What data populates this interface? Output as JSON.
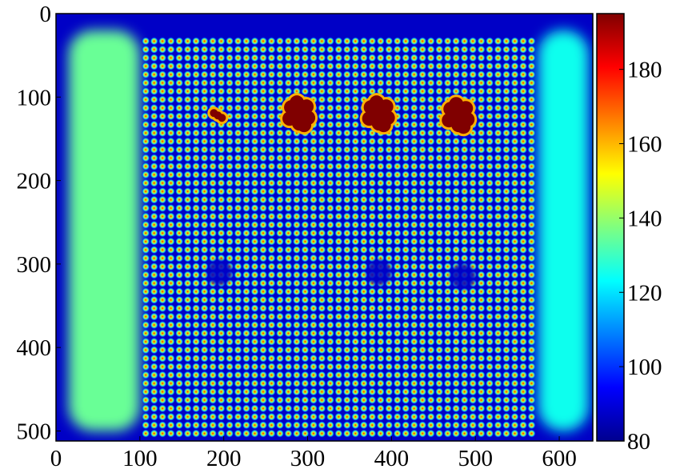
{
  "chart_data": {
    "type": "heatmap",
    "title": "",
    "xlabel": "",
    "ylabel": "",
    "xlim": [
      0,
      640
    ],
    "ylim": [
      512,
      0
    ],
    "x_ticks": [
      0,
      100,
      200,
      300,
      400,
      500,
      600
    ],
    "y_ticks": [
      0,
      100,
      200,
      300,
      400,
      500
    ],
    "colorbar": {
      "range": [
        80,
        195
      ],
      "ticks": [
        80,
        100,
        120,
        140,
        160,
        180
      ],
      "colormap": "jet"
    },
    "regions": [
      {
        "name": "left-band",
        "x_range": [
          15,
          100
        ],
        "y_range": [
          20,
          500
        ],
        "level": 135
      },
      {
        "name": "right-band",
        "x_range": [
          575,
          635
        ],
        "y_range": [
          20,
          500
        ],
        "level": 125
      },
      {
        "name": "dot-grid",
        "x_range": [
          102,
          572
        ],
        "y_range": [
          28,
          508
        ],
        "pitch": 10,
        "dot_peak": 175,
        "background": 88
      }
    ],
    "hotspots": [
      {
        "x": 193,
        "y": 122,
        "level": 195
      },
      {
        "x": 290,
        "y": 120,
        "level": 195
      },
      {
        "x": 385,
        "y": 120,
        "level": 195
      },
      {
        "x": 480,
        "y": 122,
        "level": 195
      }
    ],
    "darkspots": [
      {
        "x": 195,
        "y": 310
      },
      {
        "x": 385,
        "y": 310
      },
      {
        "x": 485,
        "y": 315
      }
    ]
  }
}
